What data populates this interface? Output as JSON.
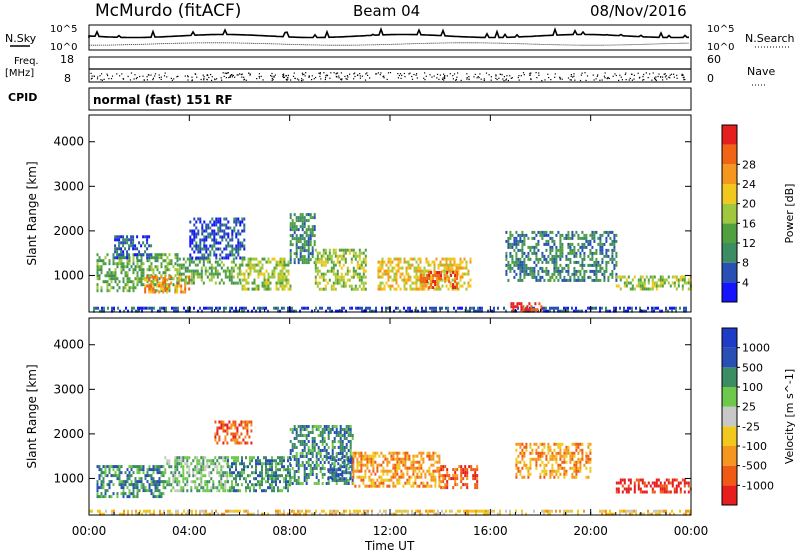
{
  "header": {
    "title": "McMurdo (fitACF)",
    "beam": "Beam 04",
    "date": "08/Nov/2016"
  },
  "top_panel": {
    "left_label_top": "N.Sky",
    "left_label_freq": "Freq.",
    "left_label_freq_unit": "[MHz]",
    "left_label_cpid": "CPID",
    "right_label_nsearch": "N.Search",
    "right_label_nave": "Nave",
    "noise_tick_high": "10^5",
    "noise_tick_low": "10^0",
    "freq_tick_high": "18",
    "freq_tick_low": "8",
    "nave_tick_high": "60",
    "nave_tick_low": "0",
    "cpid_text": "normal (fast) 151 RF"
  },
  "x_axis": {
    "label": "Time UT",
    "ticks": [
      "00:00",
      "04:00",
      "08:00",
      "12:00",
      "16:00",
      "20:00",
      "00:00"
    ]
  },
  "chart_data": [
    {
      "type": "heatmap",
      "title": "",
      "xlabel": "Time UT",
      "ylabel": "Slant Range [km]",
      "xlim": [
        0,
        24
      ],
      "ylim": [
        180,
        4600
      ],
      "yticks": [
        "1000",
        "2000",
        "3000",
        "4000"
      ],
      "colorbar": {
        "label": "Power [dB]",
        "ticks": [
          "4",
          "8",
          "12",
          "16",
          "20",
          "24",
          "28"
        ],
        "colors": [
          "#1414ff",
          "#2850b4",
          "#3c8c64",
          "#50a040",
          "#a0c83c",
          "#f0c81e",
          "#f5961e",
          "#f06414",
          "#e61e1e"
        ]
      },
      "blobs": [
        {
          "t0": 0.0,
          "t1": 24.0,
          "r0": 200,
          "r1": 300,
          "level": 1
        },
        {
          "t0": 0.3,
          "t1": 3.5,
          "r0": 650,
          "r1": 1500,
          "level": 3
        },
        {
          "t0": 1.0,
          "t1": 2.5,
          "r0": 1400,
          "r1": 1900,
          "level": 1
        },
        {
          "t0": 2.2,
          "t1": 4.0,
          "r0": 600,
          "r1": 1000,
          "level": 6
        },
        {
          "t0": 3.5,
          "t1": 6.0,
          "r0": 800,
          "r1": 1400,
          "level": 3
        },
        {
          "t0": 4.0,
          "t1": 6.2,
          "r0": 1400,
          "r1": 2300,
          "level": 1
        },
        {
          "t0": 6.0,
          "t1": 8.0,
          "r0": 700,
          "r1": 1400,
          "level": 4
        },
        {
          "t0": 8.0,
          "t1": 9.0,
          "r0": 1300,
          "r1": 2400,
          "level": 2
        },
        {
          "t0": 9.0,
          "t1": 11.0,
          "r0": 700,
          "r1": 1600,
          "level": 4
        },
        {
          "t0": 11.5,
          "t1": 15.2,
          "r0": 700,
          "r1": 1400,
          "level": 5
        },
        {
          "t0": 13.2,
          "t1": 14.7,
          "r0": 700,
          "r1": 1100,
          "level": 7
        },
        {
          "t0": 16.8,
          "t1": 18.2,
          "r0": 200,
          "r1": 400,
          "level": 8
        },
        {
          "t0": 16.6,
          "t1": 21.0,
          "r0": 900,
          "r1": 2000,
          "level": 2
        },
        {
          "t0": 21.0,
          "t1": 24.0,
          "r0": 700,
          "r1": 1000,
          "level": 4
        }
      ]
    },
    {
      "type": "heatmap",
      "title": "",
      "xlabel": "Time UT",
      "ylabel": "Slant Range [km]",
      "xlim": [
        0,
        24
      ],
      "ylim": [
        180,
        4600
      ],
      "yticks": [
        "1000",
        "2000",
        "3000",
        "4000"
      ],
      "colorbar": {
        "label": "Velocity [m s^-1]",
        "ticks": [
          "-1000",
          "-500",
          "-100",
          "-25",
          "25",
          "100",
          "500",
          "1000"
        ],
        "colors": [
          "#e61e1e",
          "#f05a14",
          "#f5961e",
          "#f0c81e",
          "#c8c8c8",
          "#6ec84b",
          "#3c8c64",
          "#2850b4",
          "#1e3cc8"
        ]
      },
      "blobs": [
        {
          "t0": 0.0,
          "t1": 24.0,
          "r0": 200,
          "r1": 300,
          "level": 3
        },
        {
          "t0": 0.3,
          "t1": 3.0,
          "r0": 600,
          "r1": 1300,
          "level": 6
        },
        {
          "t0": 3.0,
          "t1": 5.5,
          "r0": 700,
          "r1": 1500,
          "level": 5
        },
        {
          "t0": 5.5,
          "t1": 8.0,
          "r0": 700,
          "r1": 1500,
          "level": 6
        },
        {
          "t0": 5.0,
          "t1": 6.5,
          "r0": 1800,
          "r1": 2300,
          "level": 1
        },
        {
          "t0": 8.0,
          "t1": 10.5,
          "r0": 900,
          "r1": 2200,
          "level": 6
        },
        {
          "t0": 9.5,
          "t1": 10.5,
          "r0": 1000,
          "r1": 1500,
          "level": 7
        },
        {
          "t0": 10.5,
          "t1": 14.0,
          "r0": 800,
          "r1": 1600,
          "level": 2
        },
        {
          "t0": 14.0,
          "t1": 15.5,
          "r0": 800,
          "r1": 1300,
          "level": 1
        },
        {
          "t0": 17.0,
          "t1": 20.0,
          "r0": 1000,
          "r1": 1800,
          "level": 2
        },
        {
          "t0": 21.0,
          "t1": 24.0,
          "r0": 700,
          "r1": 1000,
          "level": 0
        }
      ]
    }
  ]
}
